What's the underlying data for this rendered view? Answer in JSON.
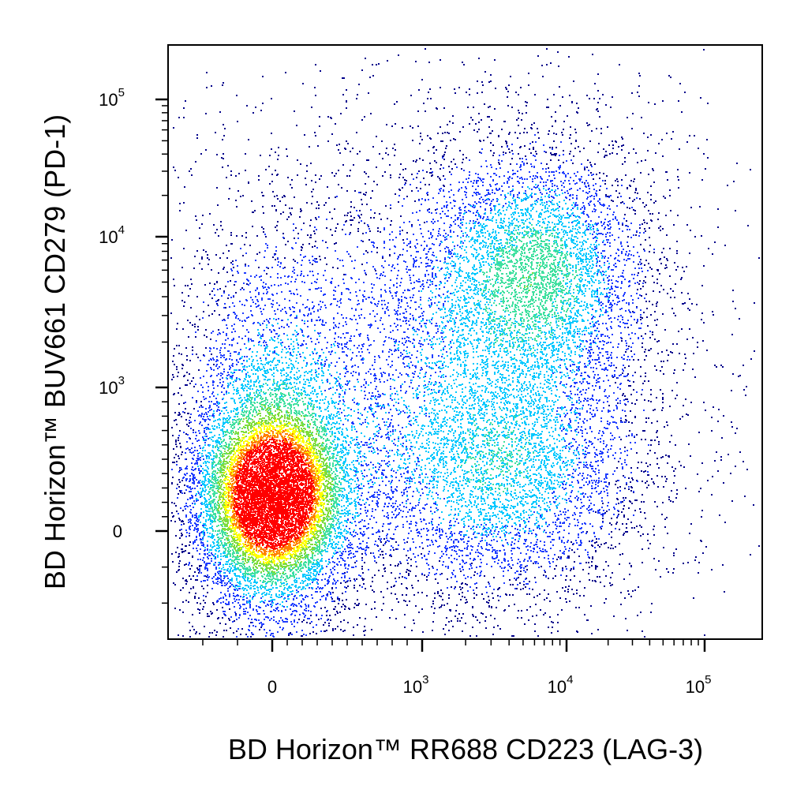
{
  "chart_data": {
    "type": "scatter",
    "subtype": "flow-cytometry-density-dot-plot",
    "xlabel": "BD Horizon™ RR688 CD223 (LAG-3)",
    "ylabel": "BD Horizon™ BUV661 CD279 (PD-1)",
    "x_scale": "biexponential",
    "y_scale": "biexponential",
    "x_ticks": [
      {
        "value": 0,
        "base": "0",
        "exp": ""
      },
      {
        "value": 1000,
        "base": "10",
        "exp": "3"
      },
      {
        "value": 10000,
        "base": "10",
        "exp": "4"
      },
      {
        "value": 100000,
        "base": "10",
        "exp": "5"
      }
    ],
    "y_ticks": [
      {
        "value": 0,
        "base": "0",
        "exp": ""
      },
      {
        "value": 1000,
        "base": "10",
        "exp": "3"
      },
      {
        "value": 10000,
        "base": "10",
        "exp": "4"
      },
      {
        "value": 100000,
        "base": "10",
        "exp": "5"
      }
    ],
    "grid": false,
    "legend": "none",
    "density_colors": [
      "#00008b",
      "#1e3cff",
      "#00c8ff",
      "#40e0a0",
      "#7fdc3c",
      "#ffff00",
      "#ff8000",
      "#ff0000"
    ],
    "populations": [
      {
        "x_center": 50,
        "y_center": 150,
        "density": "highest"
      },
      {
        "x_center": 6000,
        "y_center": 6000,
        "density": "medium"
      },
      {
        "x_center": 5000,
        "y_center": 300,
        "density": "medium"
      },
      {
        "x_center": 800,
        "y_center": 1500,
        "density": "low"
      }
    ]
  }
}
